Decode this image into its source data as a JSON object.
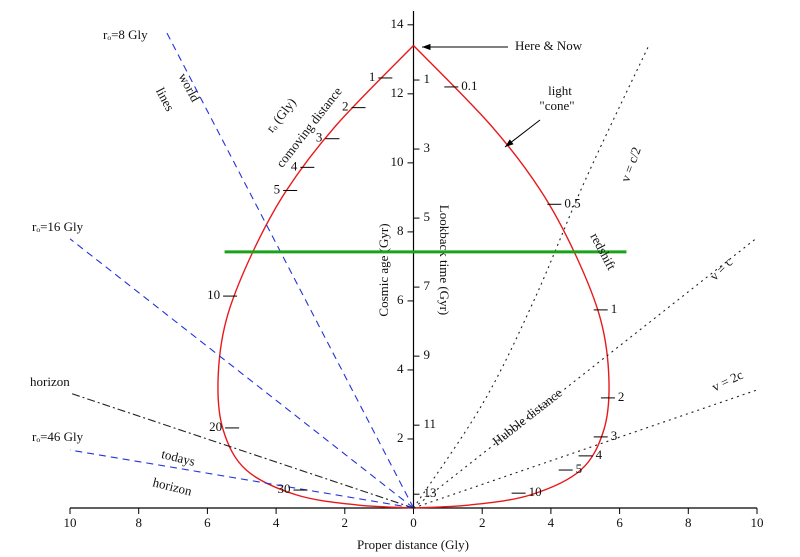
{
  "chart_data": {
    "type": "line",
    "xlabel": "Proper distance (Gly)",
    "ylabel": "Cosmic age (Gyr)",
    "y2label": "Lookback time (Gyr)",
    "xlim": [
      -10,
      10
    ],
    "ylim": [
      0,
      14.4
    ],
    "y2lim": [
      13.4,
      -1.0
    ],
    "xticks": [
      {
        "value": -10,
        "label": "10"
      },
      {
        "value": -8,
        "label": "8"
      },
      {
        "value": -6,
        "label": "6"
      },
      {
        "value": -4,
        "label": "4"
      },
      {
        "value": -2,
        "label": "2"
      },
      0,
      2,
      4,
      6,
      8,
      10
    ],
    "yticks": [
      2,
      4,
      6,
      8,
      10,
      12,
      14
    ],
    "y2ticks": [
      1,
      3,
      5,
      7,
      9,
      11,
      13
    ],
    "series": [
      {
        "color": "#e8191b",
        "dash": "solid",
        "x": [
          0,
          2.24,
          3.7,
          4.72,
          5.45,
          5.69,
          5.54,
          4.87,
          3.41,
          1.66,
          0
        ],
        "values": [
          13.4,
          11.1,
          9.2,
          7.33,
          5.45,
          3.71,
          2.26,
          1.1,
          0.38,
          0.09,
          0
        ]
      },
      {
        "color": "#e8191b",
        "dash": "solid",
        "x": [
          0,
          -2.24,
          -3.7,
          -4.72,
          -5.45,
          -5.69,
          -5.54,
          -4.87,
          -3.41,
          -1.66,
          0
        ],
        "values": [
          13.4,
          11.1,
          9.2,
          7.33,
          5.45,
          3.71,
          2.26,
          1.1,
          0.38,
          0.09,
          0
        ]
      },
      {
        "color": "#2233dd",
        "dash": "dashed",
        "x": [
          0,
          -7.23
        ],
        "values": [
          0,
          13.86
        ]
      },
      {
        "color": "#2233dd",
        "dash": "dashed",
        "x": [
          0,
          -10
        ],
        "values": [
          0,
          7.8
        ]
      },
      {
        "color": "#2233dd",
        "dash": "dashed",
        "x": [
          0,
          -10
        ],
        "values": [
          0,
          1.68
        ]
      },
      {
        "color": "#222222",
        "dash": "dashdot",
        "x": [
          0,
          -10
        ],
        "values": [
          0,
          3.33
        ]
      },
      {
        "color": "#222222",
        "dash": "dotted",
        "x": [
          0,
          2,
          3.5,
          5,
          6.85
        ],
        "values": [
          0,
          3,
          6,
          9.5,
          13.4
        ]
      },
      {
        "color": "#222222",
        "dash": "dotted",
        "x": [
          0,
          10
        ],
        "values": [
          0,
          7.83
        ]
      },
      {
        "color": "#222222",
        "dash": "dotted",
        "x": [
          0,
          10
        ],
        "values": [
          0,
          3.42
        ]
      },
      {
        "color": "#1aa31a",
        "dash": "thick",
        "x": [
          -5.5,
          6.2
        ],
        "values": [
          7.42,
          7.42
        ]
      }
    ],
    "redshift_marks": {
      "labels": [
        0.1,
        0.5,
        1,
        2,
        3,
        4,
        5,
        10
      ],
      "x": [
        1.1,
        4.1,
        5.45,
        5.66,
        5.45,
        5.01,
        4.43,
        3.06
      ],
      "y": [
        12.2,
        8.8,
        5.74,
        3.19,
        2.06,
        1.51,
        1.1,
        0.43
      ]
    },
    "comoving_marks": {
      "labels": [
        1,
        2,
        3,
        4,
        5,
        10,
        20,
        30
      ],
      "x": [
        -0.82,
        -1.6,
        -2.36,
        -3.09,
        -3.59,
        -5.34,
        -5.28,
        -3.29
      ],
      "y": [
        12.46,
        11.6,
        10.7,
        9.87,
        9.2,
        6.14,
        2.32,
        0.52
      ]
    },
    "annotations": [
      "Here & Now",
      "light",
      "\"cone\"",
      "rₒ (Gly)",
      "comoving distance",
      "world",
      "lines",
      "rₒ=8 Gly",
      "rₒ=16 Gly",
      "horizon",
      "rₒ=46 Gly",
      "todays",
      "horizon",
      "redshift",
      "Hubble distance",
      "v = c/2",
      "v = c",
      "v = 2c"
    ]
  }
}
